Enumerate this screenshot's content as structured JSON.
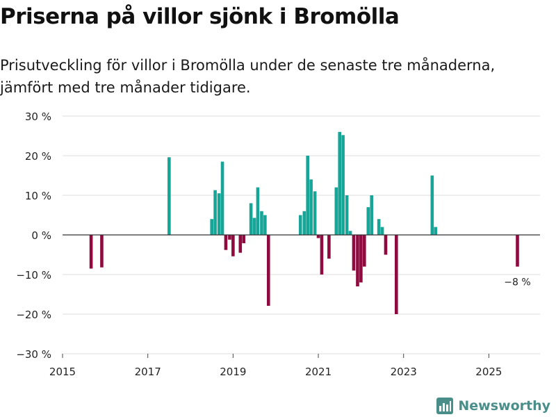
{
  "header": {
    "title": "Priserna på villor sjönk i Bromölla",
    "subtitle": "Prisutveckling för villor i Bromölla under de senaste tre månaderna, jämfört med tre månader tidigare."
  },
  "brand": {
    "name": "Newsworthy",
    "icon": "newsworthy-logo-icon"
  },
  "colors": {
    "positive": "#17a598",
    "negative": "#8f0a3e",
    "grid": "#dcdcdc",
    "zero": "#333333"
  },
  "chart_data": {
    "type": "bar",
    "title": "Priserna på villor sjönk i Bromölla",
    "xlabel": "",
    "ylabel": "",
    "xlim": [
      2015.0,
      2026.2
    ],
    "ylim": [
      -30,
      30
    ],
    "yticks": [
      -30,
      -20,
      -10,
      0,
      10,
      20,
      30
    ],
    "ytick_labels": [
      "−30 %",
      "−20 %",
      "−10 %",
      "0 %",
      "10 %",
      "20 %",
      "30 %"
    ],
    "xticks": [
      2015,
      2017,
      2019,
      2021,
      2023,
      2025
    ],
    "xtick_labels": [
      "2015",
      "2017",
      "2019",
      "2021",
      "2023",
      "2025"
    ],
    "grid": true,
    "series": [
      {
        "name": "Prisutveckling",
        "unit": "%",
        "x": [
          2015.67,
          2015.92,
          2017.5,
          2018.5,
          2018.58,
          2018.67,
          2018.75,
          2018.83,
          2018.92,
          2019.0,
          2019.17,
          2019.25,
          2019.42,
          2019.5,
          2019.58,
          2019.67,
          2019.75,
          2019.83,
          2020.58,
          2020.67,
          2020.75,
          2020.83,
          2020.92,
          2021.0,
          2021.08,
          2021.25,
          2021.42,
          2021.5,
          2021.58,
          2021.67,
          2021.75,
          2021.83,
          2021.92,
          2022.0,
          2022.08,
          2022.17,
          2022.25,
          2022.42,
          2022.5,
          2022.58,
          2022.83,
          2023.67,
          2023.75,
          2025.67
        ],
        "values": [
          -8.5,
          -8.2,
          19.6,
          4.0,
          11.3,
          10.5,
          18.5,
          -3.8,
          -1.2,
          -5.4,
          -4.5,
          -2.1,
          8.0,
          4.3,
          12.0,
          6.0,
          5.0,
          -17.9,
          5.0,
          6.0,
          20.0,
          14.0,
          11.0,
          -0.8,
          -10.0,
          -6.0,
          12.0,
          26.0,
          25.2,
          10.0,
          1.0,
          -9.0,
          -13.0,
          -12.0,
          -8.0,
          7.0,
          10.0,
          4.0,
          2.0,
          -5.0,
          -20.0,
          15.0,
          2.0,
          -8.0
        ]
      }
    ],
    "annotations": [
      {
        "x": 2025.67,
        "y": -8.0,
        "text": "−8 %"
      }
    ]
  }
}
